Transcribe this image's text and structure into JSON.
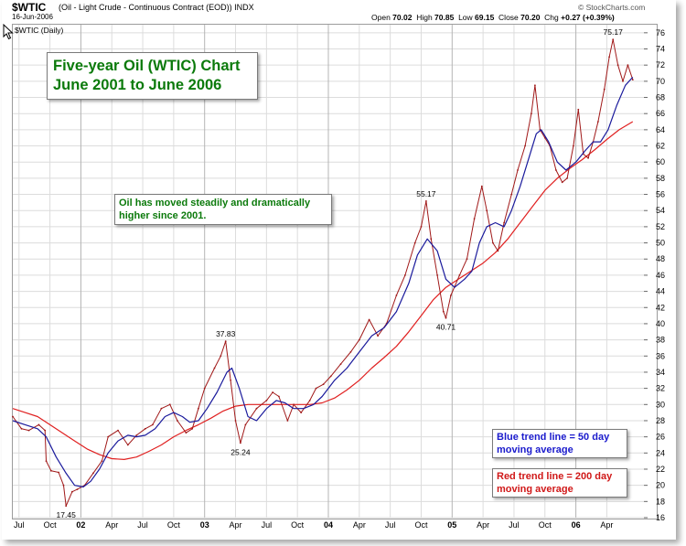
{
  "header": {
    "symbol": "$WTIC",
    "description": "(Oil - Light Crude - Continuous Contract (EOD))  INDX",
    "date": "16-Jun-2006",
    "open_label": "Open",
    "open": "70.02",
    "high_label": "High",
    "high": "70.85",
    "low_label": "Low",
    "low": "69.15",
    "close_label": "Close",
    "close": "70.20",
    "chg_label": "Chg",
    "chg": "+0.27 (+0.39%)",
    "brand": "© StockCharts.com",
    "series_label": "$WTIC (Daily)"
  },
  "annotations": {
    "title_line1": "Five-year Oil (WTIC) Chart",
    "title_line2": "June 2001 to June 2006",
    "note_line1": "Oil has moved steadily and dramatically",
    "note_line2": "higher since 2001.",
    "blue_line1": "Blue trend line = 50 day",
    "blue_line2": "moving average",
    "red_line1": "Red trend line = 200 day",
    "red_line2": "moving average"
  },
  "colors": {
    "price": "#a01818",
    "ma50": "#1a1a9c",
    "ma200": "#e02020",
    "grid": "#dcdcdc"
  },
  "chart_data": {
    "type": "line",
    "title": "Five-year Oil (WTIC) Chart",
    "subtitle": "June 2001 to June 2006",
    "ylim": [
      16,
      77
    ],
    "y_ticks": [
      16,
      18,
      20,
      22,
      24,
      26,
      28,
      30,
      32,
      34,
      36,
      38,
      40,
      42,
      44,
      46,
      48,
      50,
      52,
      54,
      56,
      58,
      60,
      62,
      64,
      66,
      68,
      70,
      72,
      74,
      76
    ],
    "xlim": [
      2001.45,
      2006.55
    ],
    "x_ticks": [
      {
        "t": 2001.5,
        "label": "Jul"
      },
      {
        "t": 2001.75,
        "label": "Oct"
      },
      {
        "t": 2002.0,
        "label": "02"
      },
      {
        "t": 2002.25,
        "label": "Apr"
      },
      {
        "t": 2002.5,
        "label": "Jul"
      },
      {
        "t": 2002.75,
        "label": "Oct"
      },
      {
        "t": 2003.0,
        "label": "03"
      },
      {
        "t": 2003.25,
        "label": "Apr"
      },
      {
        "t": 2003.5,
        "label": "Jul"
      },
      {
        "t": 2003.75,
        "label": "Oct"
      },
      {
        "t": 2004.0,
        "label": "04"
      },
      {
        "t": 2004.25,
        "label": "Apr"
      },
      {
        "t": 2004.5,
        "label": "Jul"
      },
      {
        "t": 2004.75,
        "label": "Oct"
      },
      {
        "t": 2005.0,
        "label": "05"
      },
      {
        "t": 2005.25,
        "label": "Apr"
      },
      {
        "t": 2005.5,
        "label": "Jul"
      },
      {
        "t": 2005.75,
        "label": "Oct"
      },
      {
        "t": 2006.0,
        "label": "06"
      },
      {
        "t": 2006.25,
        "label": "Apr"
      }
    ],
    "grid": true,
    "series": [
      {
        "name": "$WTIC (Daily)",
        "color": "#a01818",
        "points": [
          [
            2001.45,
            28.5
          ],
          [
            2001.52,
            27.0
          ],
          [
            2001.58,
            26.8
          ],
          [
            2001.66,
            27.5
          ],
          [
            2001.71,
            26.8
          ],
          [
            2001.72,
            23.0
          ],
          [
            2001.76,
            21.8
          ],
          [
            2001.82,
            21.6
          ],
          [
            2001.86,
            20.0
          ],
          [
            2001.88,
            17.45
          ],
          [
            2001.93,
            19.2
          ],
          [
            2001.97,
            19.5
          ],
          [
            2002.03,
            20.0
          ],
          [
            2002.1,
            21.5
          ],
          [
            2002.17,
            23.0
          ],
          [
            2002.22,
            26.0
          ],
          [
            2002.3,
            26.8
          ],
          [
            2002.38,
            25.0
          ],
          [
            2002.45,
            26.2
          ],
          [
            2002.52,
            27.0
          ],
          [
            2002.58,
            27.5
          ],
          [
            2002.65,
            29.5
          ],
          [
            2002.72,
            30.0
          ],
          [
            2002.78,
            28.0
          ],
          [
            2002.85,
            26.5
          ],
          [
            2002.9,
            27.0
          ],
          [
            2002.95,
            29.5
          ],
          [
            2003.0,
            32.0
          ],
          [
            2003.08,
            34.5
          ],
          [
            2003.13,
            36.0
          ],
          [
            2003.17,
            37.83
          ],
          [
            2003.21,
            33.0
          ],
          [
            2003.25,
            28.0
          ],
          [
            2003.29,
            25.24
          ],
          [
            2003.33,
            27.5
          ],
          [
            2003.42,
            29.5
          ],
          [
            2003.5,
            30.5
          ],
          [
            2003.55,
            31.5
          ],
          [
            2003.6,
            31.0
          ],
          [
            2003.67,
            28.0
          ],
          [
            2003.72,
            30.0
          ],
          [
            2003.78,
            29.0
          ],
          [
            2003.85,
            30.5
          ],
          [
            2003.9,
            32.0
          ],
          [
            2003.96,
            32.5
          ],
          [
            2004.02,
            33.5
          ],
          [
            2004.1,
            35.0
          ],
          [
            2004.18,
            36.5
          ],
          [
            2004.25,
            38.0
          ],
          [
            2004.33,
            40.5
          ],
          [
            2004.4,
            38.5
          ],
          [
            2004.47,
            40.0
          ],
          [
            2004.55,
            43.5
          ],
          [
            2004.62,
            46.0
          ],
          [
            2004.7,
            50.0
          ],
          [
            2004.75,
            52.0
          ],
          [
            2004.79,
            55.17
          ],
          [
            2004.83,
            50.5
          ],
          [
            2004.88,
            46.0
          ],
          [
            2004.93,
            41.5
          ],
          [
            2004.95,
            40.71
          ],
          [
            2004.99,
            43.5
          ],
          [
            2005.06,
            46.0
          ],
          [
            2005.12,
            48.0
          ],
          [
            2005.18,
            53.0
          ],
          [
            2005.24,
            57.0
          ],
          [
            2005.28,
            54.0
          ],
          [
            2005.33,
            50.0
          ],
          [
            2005.37,
            49.0
          ],
          [
            2005.42,
            52.5
          ],
          [
            2005.48,
            56.0
          ],
          [
            2005.53,
            59.0
          ],
          [
            2005.59,
            62.0
          ],
          [
            2005.64,
            66.0
          ],
          [
            2005.67,
            69.5
          ],
          [
            2005.71,
            64.0
          ],
          [
            2005.75,
            63.0
          ],
          [
            2005.79,
            62.0
          ],
          [
            2005.84,
            59.0
          ],
          [
            2005.89,
            57.5
          ],
          [
            2005.93,
            58.0
          ],
          [
            2005.98,
            62.0
          ],
          [
            2006.02,
            66.5
          ],
          [
            2006.06,
            61.0
          ],
          [
            2006.1,
            60.5
          ],
          [
            2006.14,
            62.5
          ],
          [
            2006.18,
            65.0
          ],
          [
            2006.23,
            69.0
          ],
          [
            2006.27,
            73.0
          ],
          [
            2006.3,
            75.17
          ],
          [
            2006.34,
            72.0
          ],
          [
            2006.38,
            70.0
          ],
          [
            2006.42,
            72.0
          ],
          [
            2006.46,
            70.2
          ]
        ]
      },
      {
        "name": "50 day moving average",
        "color": "#1a1a9c",
        "points": [
          [
            2001.45,
            28.0
          ],
          [
            2001.55,
            27.5
          ],
          [
            2001.65,
            27.0
          ],
          [
            2001.72,
            26.0
          ],
          [
            2001.8,
            23.5
          ],
          [
            2001.88,
            21.5
          ],
          [
            2001.95,
            20.0
          ],
          [
            2002.02,
            19.8
          ],
          [
            2002.08,
            20.5
          ],
          [
            2002.15,
            22.0
          ],
          [
            2002.22,
            24.0
          ],
          [
            2002.3,
            25.5
          ],
          [
            2002.38,
            26.2
          ],
          [
            2002.45,
            26.0
          ],
          [
            2002.52,
            26.2
          ],
          [
            2002.6,
            27.0
          ],
          [
            2002.68,
            28.5
          ],
          [
            2002.75,
            29.0
          ],
          [
            2002.82,
            28.5
          ],
          [
            2002.88,
            27.8
          ],
          [
            2002.95,
            28.0
          ],
          [
            2003.02,
            29.5
          ],
          [
            2003.1,
            31.5
          ],
          [
            2003.18,
            34.0
          ],
          [
            2003.22,
            34.5
          ],
          [
            2003.28,
            32.0
          ],
          [
            2003.35,
            28.5
          ],
          [
            2003.42,
            28.0
          ],
          [
            2003.5,
            29.5
          ],
          [
            2003.58,
            30.5
          ],
          [
            2003.65,
            30.2
          ],
          [
            2003.72,
            29.5
          ],
          [
            2003.8,
            29.5
          ],
          [
            2003.88,
            30.0
          ],
          [
            2003.95,
            31.0
          ],
          [
            2004.05,
            33.0
          ],
          [
            2004.15,
            34.5
          ],
          [
            2004.25,
            36.5
          ],
          [
            2004.35,
            38.5
          ],
          [
            2004.45,
            39.5
          ],
          [
            2004.55,
            41.5
          ],
          [
            2004.65,
            45.0
          ],
          [
            2004.72,
            48.5
          ],
          [
            2004.8,
            50.5
          ],
          [
            2004.88,
            49.0
          ],
          [
            2004.95,
            45.5
          ],
          [
            2005.02,
            44.5
          ],
          [
            2005.1,
            45.5
          ],
          [
            2005.16,
            46.5
          ],
          [
            2005.22,
            50.0
          ],
          [
            2005.28,
            52.0
          ],
          [
            2005.35,
            52.5
          ],
          [
            2005.42,
            52.0
          ],
          [
            2005.48,
            54.0
          ],
          [
            2005.55,
            57.0
          ],
          [
            2005.62,
            60.5
          ],
          [
            2005.68,
            63.5
          ],
          [
            2005.72,
            64.0
          ],
          [
            2005.78,
            62.5
          ],
          [
            2005.85,
            60.0
          ],
          [
            2005.92,
            59.0
          ],
          [
            2006.0,
            60.0
          ],
          [
            2006.08,
            61.5
          ],
          [
            2006.14,
            62.5
          ],
          [
            2006.2,
            62.5
          ],
          [
            2006.26,
            64.0
          ],
          [
            2006.33,
            67.0
          ],
          [
            2006.4,
            69.5
          ],
          [
            2006.46,
            70.5
          ]
        ]
      },
      {
        "name": "200 day moving average",
        "color": "#e02020",
        "points": [
          [
            2001.45,
            29.5
          ],
          [
            2001.55,
            29.0
          ],
          [
            2001.65,
            28.5
          ],
          [
            2001.75,
            27.5
          ],
          [
            2001.85,
            26.5
          ],
          [
            2001.95,
            25.5
          ],
          [
            2002.05,
            24.5
          ],
          [
            2002.15,
            23.8
          ],
          [
            2002.25,
            23.3
          ],
          [
            2002.35,
            23.2
          ],
          [
            2002.45,
            23.5
          ],
          [
            2002.55,
            24.2
          ],
          [
            2002.65,
            25.0
          ],
          [
            2002.75,
            26.0
          ],
          [
            2002.85,
            26.8
          ],
          [
            2002.95,
            27.5
          ],
          [
            2003.05,
            28.3
          ],
          [
            2003.15,
            29.2
          ],
          [
            2003.25,
            29.8
          ],
          [
            2003.35,
            30.0
          ],
          [
            2003.45,
            30.0
          ],
          [
            2003.55,
            30.0
          ],
          [
            2003.65,
            30.0
          ],
          [
            2003.75,
            30.0
          ],
          [
            2003.85,
            30.0
          ],
          [
            2003.95,
            30.2
          ],
          [
            2004.05,
            30.8
          ],
          [
            2004.15,
            31.8
          ],
          [
            2004.25,
            33.0
          ],
          [
            2004.35,
            34.5
          ],
          [
            2004.45,
            35.8
          ],
          [
            2004.55,
            37.2
          ],
          [
            2004.65,
            39.0
          ],
          [
            2004.75,
            41.0
          ],
          [
            2004.85,
            43.0
          ],
          [
            2004.95,
            44.5
          ],
          [
            2005.05,
            45.5
          ],
          [
            2005.15,
            46.5
          ],
          [
            2005.25,
            47.5
          ],
          [
            2005.35,
            48.8
          ],
          [
            2005.45,
            50.5
          ],
          [
            2005.55,
            52.5
          ],
          [
            2005.65,
            54.5
          ],
          [
            2005.75,
            56.5
          ],
          [
            2005.85,
            58.0
          ],
          [
            2005.95,
            59.2
          ],
          [
            2006.05,
            60.3
          ],
          [
            2006.15,
            61.5
          ],
          [
            2006.25,
            62.8
          ],
          [
            2006.35,
            64.0
          ],
          [
            2006.46,
            65.0
          ]
        ]
      }
    ],
    "price_labels": [
      {
        "t": 2001.88,
        "v": 17.45,
        "text": "17.45",
        "pos": "below"
      },
      {
        "t": 2003.17,
        "v": 37.83,
        "text": "37.83",
        "pos": "above"
      },
      {
        "t": 2003.29,
        "v": 25.24,
        "text": "25.24",
        "pos": "below"
      },
      {
        "t": 2004.79,
        "v": 55.17,
        "text": "55.17",
        "pos": "above"
      },
      {
        "t": 2004.95,
        "v": 40.71,
        "text": "40.71",
        "pos": "below"
      },
      {
        "t": 2006.3,
        "v": 75.17,
        "text": "75.17",
        "pos": "above"
      }
    ]
  }
}
